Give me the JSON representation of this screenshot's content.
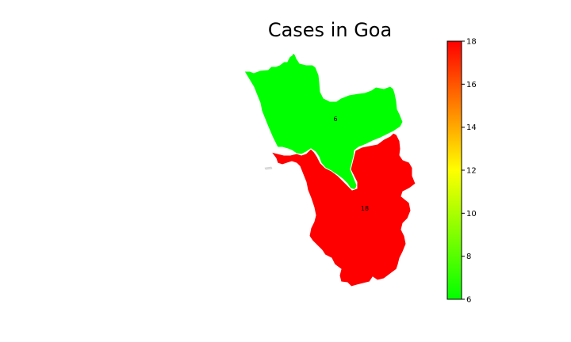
{
  "chart_data": {
    "type": "choropleth",
    "title": "Cases in Goa",
    "regions": [
      {
        "value": 6,
        "label": "6",
        "color": "#00ff00"
      },
      {
        "value": 18,
        "label": "18",
        "color": "#ff0000"
      }
    ],
    "colorbar": {
      "min": 6,
      "max": 18,
      "ticks": [
        "6",
        "8",
        "10",
        "12",
        "14",
        "16",
        "18"
      ],
      "colormap": [
        "#00ff00",
        "#ffff00",
        "#ff0000"
      ]
    }
  }
}
